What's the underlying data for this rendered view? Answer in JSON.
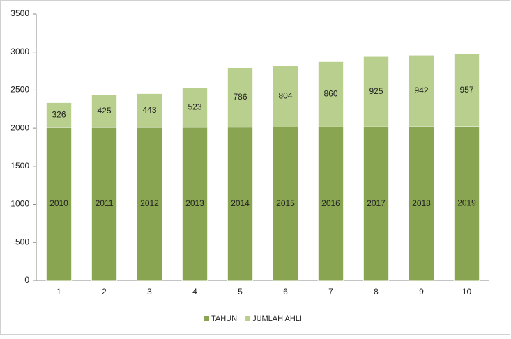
{
  "chart_data": {
    "type": "stacked-bar",
    "categories": [
      "1",
      "2",
      "3",
      "4",
      "5",
      "6",
      "7",
      "8",
      "9",
      "10"
    ],
    "series": [
      {
        "name": "TAHUN",
        "color": "#8aa552",
        "values": [
          2010,
          2011,
          2012,
          2013,
          2014,
          2015,
          2016,
          2017,
          2018,
          2019
        ]
      },
      {
        "name": "JUMLAH AHLI",
        "color": "#b8cf8e",
        "values": [
          326,
          425,
          443,
          523,
          786,
          804,
          860,
          925,
          942,
          957
        ]
      }
    ],
    "ylim": [
      0,
      3500
    ],
    "yticks": [
      0,
      500,
      1000,
      1500,
      2000,
      2500,
      3000,
      3500
    ],
    "grid": false,
    "legend": "bottom"
  }
}
